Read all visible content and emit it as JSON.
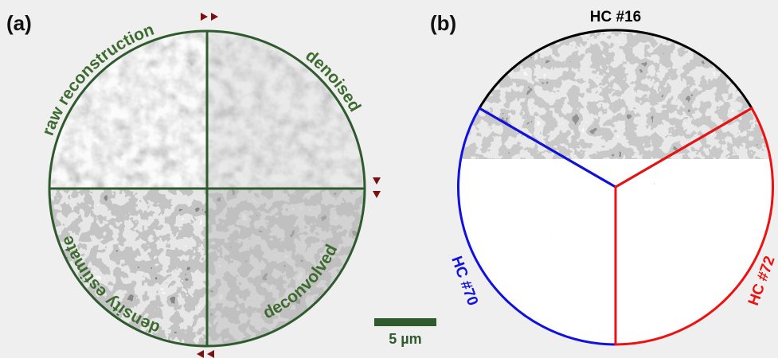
{
  "panel_a": {
    "label": "(a)",
    "quadrants": [
      "raw reconstruction",
      "denoised",
      "density estimate",
      "deconvolved"
    ],
    "scale_bar": "5 µm"
  },
  "panel_b": {
    "label": "(b)",
    "sectors": [
      "HC #16",
      "HC #70",
      "HC #72"
    ]
  }
}
